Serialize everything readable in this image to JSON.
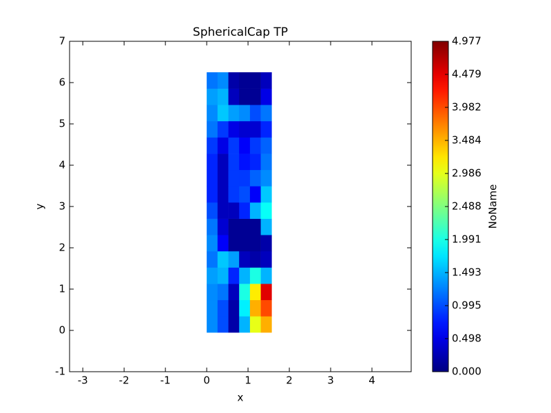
{
  "chart_data": {
    "type": "heatmap",
    "title": "SphericalCap TP",
    "x_label": "x",
    "y_label": "y",
    "colorbar_label": "NoName",
    "cmap": "jet",
    "xlim": [
      -3.32,
      4.95
    ],
    "ylim": [
      -1,
      7
    ],
    "xticks": [
      -3,
      -2,
      -1,
      0,
      1,
      2,
      3,
      4
    ],
    "yticks": [
      -1,
      0,
      1,
      2,
      3,
      4,
      5,
      6,
      7
    ],
    "zlim": [
      0,
      4.977
    ],
    "zticks": [
      {
        "value": 0,
        "label": "0.000"
      },
      0.498,
      0.995,
      1.493,
      1.991,
      2.488,
      2.986,
      3.484,
      3.982,
      4.479,
      4.977
    ],
    "x_edges": [
      0,
      0.262,
      0.524,
      0.785,
      1.047,
      1.309,
      1.571
    ],
    "y_edges": [
      -0.05,
      0.344,
      0.738,
      1.131,
      1.525,
      1.919,
      2.313,
      2.706,
      3.1,
      3.494,
      3.888,
      4.281,
      4.675,
      5.069,
      5.463,
      5.856,
      6.25
    ],
    "z": [
      [
        1.3,
        1.0,
        0.2,
        1.5,
        3.0,
        3.5
      ],
      [
        1.3,
        1.0,
        0.2,
        1.8,
        3.5,
        4.0
      ],
      [
        1.3,
        1.2,
        0.3,
        2.0,
        3.2,
        4.5
      ],
      [
        1.4,
        1.5,
        0.8,
        1.5,
        2.0,
        1.5
      ],
      [
        1.2,
        1.6,
        1.4,
        0.3,
        0.2,
        0.3
      ],
      [
        1.3,
        0.6,
        0.1,
        0.1,
        0.1,
        0.2
      ],
      [
        1.2,
        0.4,
        0.1,
        0.1,
        0.1,
        1.5
      ],
      [
        1.0,
        0.3,
        0.3,
        0.8,
        1.5,
        1.9
      ],
      [
        0.8,
        0.3,
        0.9,
        1.0,
        0.6,
        1.6
      ],
      [
        0.8,
        0.3,
        0.9,
        0.9,
        1.1,
        1.3
      ],
      [
        0.8,
        0.3,
        0.9,
        0.7,
        0.8,
        1.2
      ],
      [
        0.9,
        0.5,
        0.9,
        0.6,
        0.9,
        1.1
      ],
      [
        1.2,
        0.9,
        0.5,
        0.4,
        0.4,
        0.8
      ],
      [
        1.3,
        1.6,
        1.4,
        1.3,
        1.0,
        1.2
      ],
      [
        1.4,
        1.5,
        0.3,
        0.1,
        0.1,
        0.5
      ],
      [
        1.2,
        1.3,
        0.2,
        0.1,
        0.1,
        0.3
      ]
    ]
  }
}
